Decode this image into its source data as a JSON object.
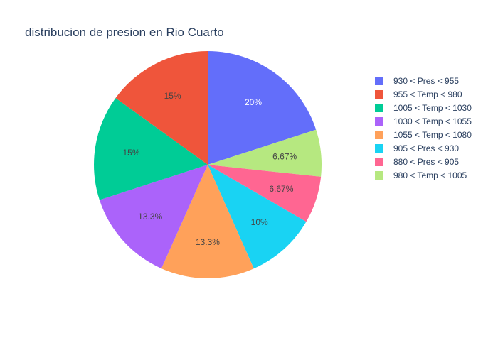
{
  "chart_data": {
    "type": "pie",
    "title": "distribucion de presion en Rio Cuarto",
    "legend_position": "right",
    "slices": [
      {
        "label": "930 < Pres < 955",
        "value": 20,
        "display": "20%",
        "color": "#636efa",
        "label_color": "#ffffff"
      },
      {
        "label": "980 < Temp < 1005",
        "value": 6.67,
        "display": "6.67%",
        "color": "#b6e880",
        "label_color": "#444444"
      },
      {
        "label": "880 < Pres < 905",
        "value": 6.67,
        "display": "6.67%",
        "color": "#ff6692",
        "label_color": "#444444"
      },
      {
        "label": "905 < Pres < 930",
        "value": 10,
        "display": "10%",
        "color": "#19d3f3",
        "label_color": "#444444"
      },
      {
        "label": "1055 < Temp < 1080",
        "value": 13.3,
        "display": "13.3%",
        "color": "#ffa15a",
        "label_color": "#444444"
      },
      {
        "label": "1030 < Temp < 1055",
        "value": 13.3,
        "display": "13.3%",
        "color": "#ab63fa",
        "label_color": "#444444"
      },
      {
        "label": "1005 < Temp < 1030",
        "value": 15,
        "display": "15%",
        "color": "#00cc96",
        "label_color": "#444444"
      },
      {
        "label": "955 < Temp < 980",
        "value": 15,
        "display": "15%",
        "color": "#ef553b",
        "label_color": "#444444"
      }
    ],
    "legend_order": [
      "930 < Pres < 955",
      "955 < Temp < 980",
      "1005 < Temp < 1030",
      "1030 < Temp < 1055",
      "1055 < Temp < 1080",
      "905 < Pres < 930",
      "880 < Pres < 905",
      "980 < Temp < 1005"
    ]
  }
}
